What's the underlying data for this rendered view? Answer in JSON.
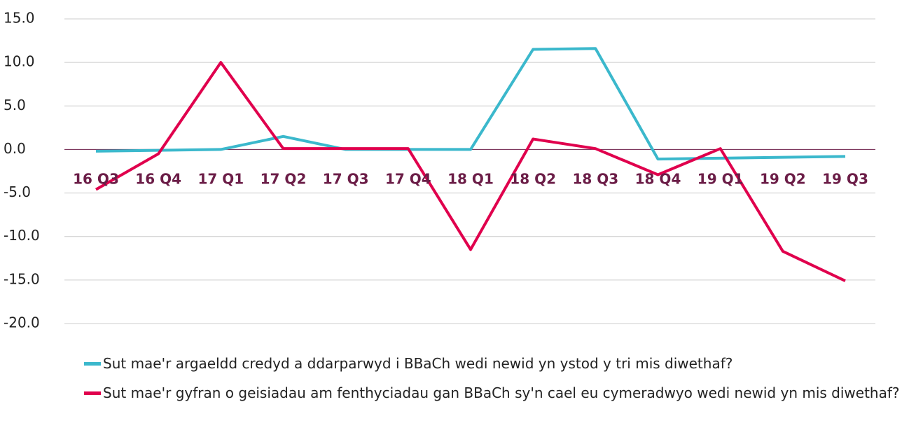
{
  "chart_data": {
    "type": "line",
    "categories": [
      "16 Q3",
      "16 Q4",
      "17 Q1",
      "17 Q2",
      "17 Q3",
      "17 Q4",
      "18 Q1",
      "18 Q2",
      "18 Q3",
      "18 Q4",
      "19 Q1",
      "19 Q2",
      "19 Q3"
    ],
    "series": [
      {
        "name": "Sut mae'r argaeldd credyd a ddarparwyd i BBaCh wedi newid yn ystod y tri mis diwethaf?",
        "color": "#3bb8cc",
        "values": [
          -0.2,
          -0.1,
          0,
          1.5,
          0,
          0,
          0,
          11.5,
          11.6,
          -1.1,
          -1.0,
          -0.9,
          -0.8
        ]
      },
      {
        "name": "Sut mae'r gyfran o geisiadau am fenthyciadau gan BBaCh sy'n cael eu cymeradwyo wedi newid yn mis diwethaf?",
        "color": "#e0004d",
        "values": [
          -4.6,
          -0.5,
          10.0,
          0.1,
          0.1,
          0.1,
          -11.5,
          1.2,
          0.1,
          -2.9,
          0.1,
          -11.7,
          -15.1
        ]
      }
    ],
    "ylim": [
      -20,
      15
    ],
    "yticks": [
      {
        "value": 15,
        "label": "15.0"
      },
      {
        "value": 10,
        "label": "10.0"
      },
      {
        "value": 5,
        "label": "5.0"
      },
      {
        "value": 0,
        "label": "0.0"
      },
      {
        "value": -5,
        "label": "-5.0"
      },
      {
        "value": -10,
        "label": "-10.0"
      },
      {
        "value": -15,
        "label": "-15.0"
      },
      {
        "value": -20,
        "label": "-20.0"
      }
    ],
    "grid": true
  }
}
